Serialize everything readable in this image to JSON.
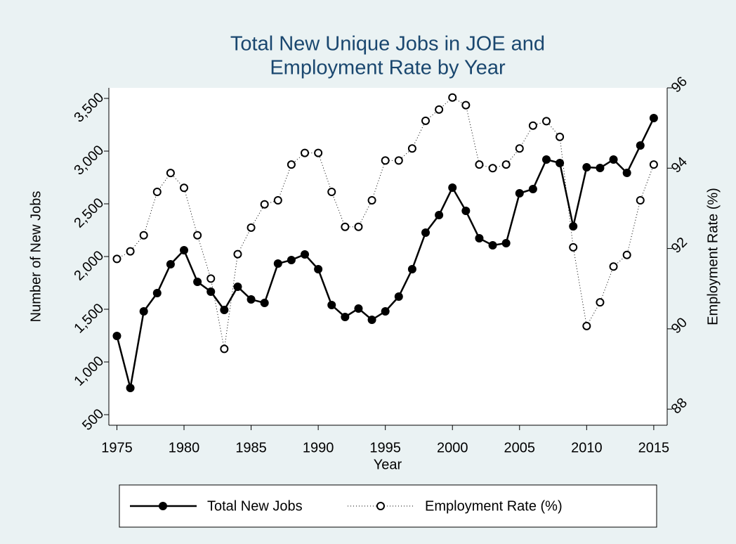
{
  "chart_data": {
    "type": "line",
    "title": [
      "Total New Unique Jobs in JOE and",
      "Employment Rate by Year"
    ],
    "x_label": "Year",
    "y_label": "Number of New Jobs",
    "y2_label": "Employment Rate (%)",
    "x": [
      1975,
      1976,
      1977,
      1978,
      1979,
      1980,
      1981,
      1982,
      1983,
      1984,
      1985,
      1986,
      1987,
      1988,
      1989,
      1990,
      1991,
      1992,
      1993,
      1994,
      1995,
      1996,
      1997,
      1998,
      1999,
      2000,
      2001,
      2002,
      2003,
      2004,
      2005,
      2006,
      2007,
      2008,
      2009,
      2010,
      2011,
      2012,
      2013,
      2014,
      2015
    ],
    "series": [
      {
        "name": "Total New Jobs",
        "color": "#000000",
        "marker": "filled",
        "line": "solid",
        "values": [
          1247,
          753,
          1480,
          1653,
          1927,
          2060,
          1760,
          1667,
          1493,
          1713,
          1593,
          1560,
          1933,
          1967,
          2020,
          1880,
          1540,
          1427,
          1507,
          1400,
          1480,
          1620,
          1880,
          2227,
          2393,
          2653,
          2433,
          2173,
          2107,
          2127,
          2600,
          2640,
          2920,
          2887,
          2287,
          2847,
          2840,
          2920,
          2793,
          3053,
          3313
        ]
      },
      {
        "name": "Employment Rate (%)",
        "color": "#000000",
        "marker": "hollow",
        "line": "dotted",
        "axis": "y2",
        "values": [
          91.74,
          91.93,
          92.33,
          93.41,
          93.88,
          93.51,
          92.33,
          91.25,
          89.5,
          91.86,
          92.52,
          93.1,
          93.2,
          94.09,
          94.38,
          94.38,
          93.41,
          92.54,
          92.54,
          93.2,
          94.19,
          94.19,
          94.49,
          95.18,
          95.46,
          95.76,
          95.57,
          94.09,
          94.0,
          94.09,
          94.49,
          95.06,
          95.17,
          94.78,
          92.03,
          90.07,
          90.66,
          91.55,
          91.84,
          93.2,
          94.09
        ]
      }
    ],
    "xlim": [
      1974.4,
      2016
    ],
    "xticks": [
      1975,
      1980,
      1985,
      1990,
      1995,
      2000,
      2005,
      2010,
      2015
    ],
    "ylim": [
      400,
      3600
    ],
    "yticks": [
      500,
      {
        "value": 1000,
        "label": "1,000"
      },
      {
        "value": 1500,
        "label": "1,500"
      },
      {
        "value": 2000,
        "label": "2,000"
      },
      {
        "value": 2500,
        "label": "2,500"
      },
      {
        "value": 3000,
        "label": "3,000"
      },
      {
        "value": 3500,
        "label": "3,500"
      }
    ],
    "y2lim": [
      87.6,
      96
    ],
    "y2ticks": [
      88,
      90,
      92,
      94,
      96
    ],
    "grid": false,
    "legend": "bottom"
  }
}
